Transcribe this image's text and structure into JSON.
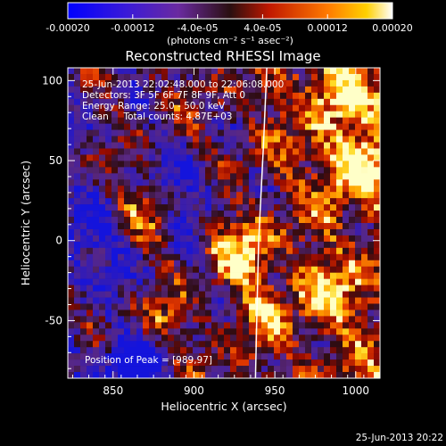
{
  "chart_data": {
    "type": "heatmap",
    "title": "Reconstructed RHESSI Image",
    "xlabel": "Heliocentric X (arcsec)",
    "ylabel": "Heliocentric Y (arcsec)",
    "xlim": [
      822,
      1015
    ],
    "ylim": [
      -86,
      108
    ],
    "x_ticks": [
      850,
      900,
      950,
      1000
    ],
    "y_ticks": [
      -50,
      0,
      50,
      100
    ],
    "colorbar": {
      "range": [
        -0.0002,
        0.0002
      ],
      "ticks": [
        "-0.00020",
        "-0.00012",
        "-4.0e-05",
        "4.0e-05",
        "0.00012",
        "0.00020"
      ],
      "tick_values": [
        -0.0002,
        -0.00012,
        -4e-05,
        4e-05,
        0.00012,
        0.0002
      ],
      "unit_label": "(photons cm⁻² s⁻¹ asec⁻²)"
    },
    "annotations": [
      "25-Jun-2013 22:02:48.000 to 22:06:08.000",
      "Detectors: 3F 5F 6F 7F 8F 9F, Att 0",
      "Energy Range: 25.0 - 50.0 keV",
      "Clean     Total counts: 4.87E+03"
    ],
    "peak_label": "Position of Peak = [989,97]",
    "peak": [
      989,
      97
    ],
    "limb_curve": [
      [
        945,
        108
      ],
      [
        943,
        60
      ],
      [
        941,
        20
      ],
      [
        940,
        0
      ],
      [
        939,
        -40
      ],
      [
        938,
        -86
      ]
    ]
  },
  "footer_timestamp": "25-Jun-2013 20:22"
}
